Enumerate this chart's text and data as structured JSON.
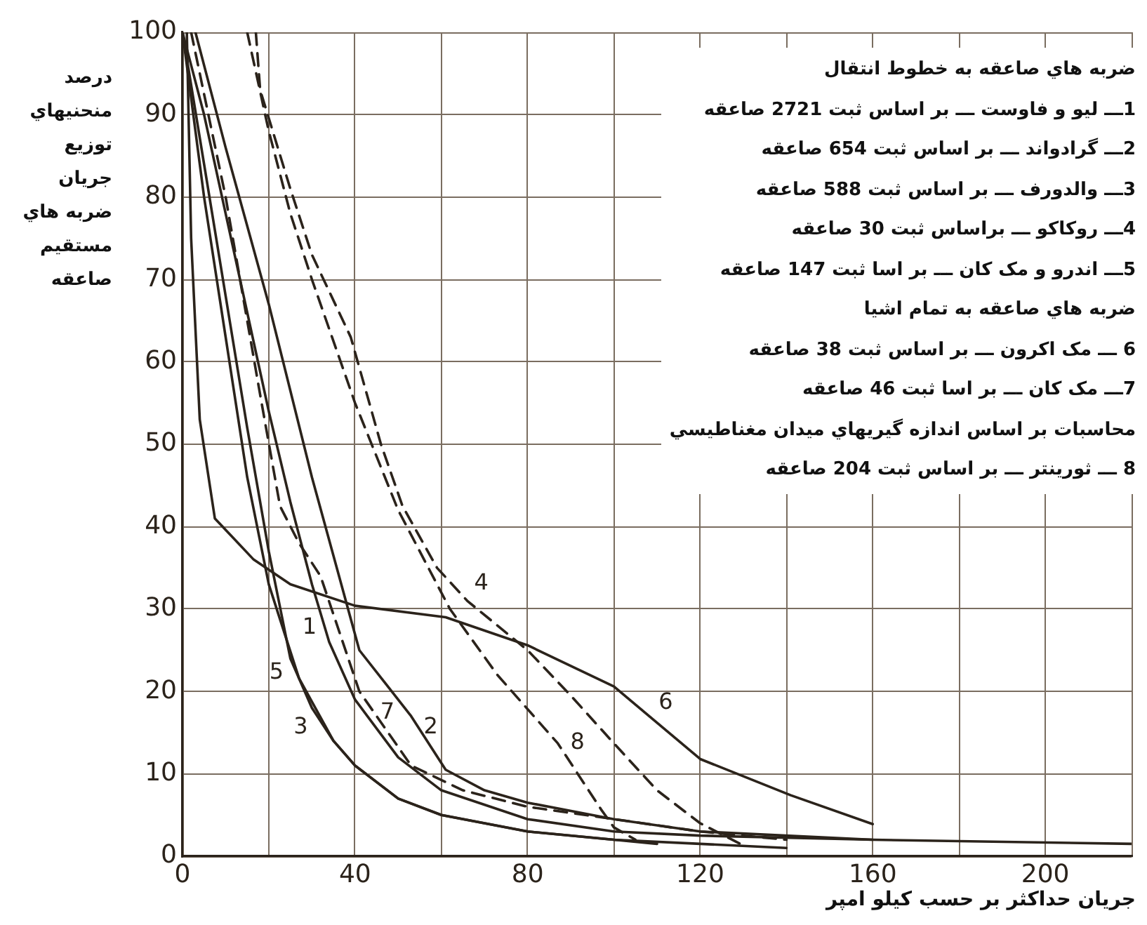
{
  "chart_data": {
    "type": "line",
    "xlabel": "جريان حداكثر بر حسب كيلو امپر",
    "ylabel": "درصد منحنيهاي توزيع جريان ضربه هاي مستقيم صاعقه",
    "xlim": [
      0,
      220
    ],
    "ylim": [
      0,
      100
    ],
    "xticks": [
      0,
      {
        "value": 20,
        "label": null
      },
      40,
      {
        "value": 60,
        "label": null
      },
      80,
      {
        "value": 100,
        "label": null
      },
      120,
      {
        "value": 140,
        "label": null
      },
      160,
      {
        "value": 180,
        "label": null
      },
      200,
      {
        "value": 220,
        "label": null
      }
    ],
    "yticks": [
      0,
      10,
      20,
      30,
      40,
      50,
      60,
      70,
      80,
      90,
      100
    ],
    "grid": true,
    "marker": "none",
    "series": [
      {
        "name": "1",
        "color": "#2b231b",
        "line_style": "solid",
        "x": [
          0,
          5,
          10,
          15,
          20,
          25,
          30,
          34,
          40,
          50,
          60,
          80,
          100,
          120,
          160,
          220
        ],
        "values": [
          100,
          90,
          78,
          66,
          54,
          43,
          33,
          26,
          19,
          12,
          8,
          4.5,
          3,
          2.5,
          2,
          1.5
        ]
      },
      {
        "name": "2",
        "color": "#2b231b",
        "line_style": "solid",
        "x": [
          3,
          10,
          20,
          30,
          41,
          47,
          53,
          61,
          70,
          80,
          100,
          120,
          160
        ],
        "values": [
          100,
          86,
          67,
          46,
          25,
          21,
          17,
          10.5,
          8,
          6.5,
          4.5,
          3,
          2
        ]
      },
      {
        "name": "3",
        "color": "#2b231b",
        "line_style": "solid",
        "x": [
          0,
          5,
          10,
          15,
          20,
          25,
          30,
          35,
          40,
          50,
          60,
          80,
          100,
          120,
          140
        ],
        "values": [
          100,
          84,
          68,
          52,
          37,
          24,
          18,
          14,
          11,
          7,
          5,
          3,
          2,
          1.5,
          1
        ]
      },
      {
        "name": "4",
        "color": "#2b231b",
        "line_style": "dashed",
        "x": [
          17,
          18,
          25,
          30,
          39,
          46,
          51,
          59,
          66,
          80,
          90,
          100,
          110,
          120,
          130
        ],
        "values": [
          100,
          93,
          81,
          73,
          63,
          50,
          42.5,
          35,
          31,
          25,
          19.5,
          13.7,
          8,
          4,
          1.3
        ]
      },
      {
        "name": "5",
        "color": "#2b231b",
        "line_style": "solid",
        "x": [
          0,
          5,
          10,
          15,
          20,
          27,
          35,
          40,
          50,
          60,
          80,
          100,
          110
        ],
        "values": [
          100,
          80,
          63,
          46,
          33,
          21.6,
          14,
          11,
          7,
          5,
          3,
          2,
          1.5
        ]
      },
      {
        "name": "6",
        "color": "#2b231b",
        "line_style": "solid",
        "x": [
          1,
          2,
          4,
          7.5,
          16.5,
          25,
          40,
          61,
          80,
          100,
          120,
          141,
          160
        ],
        "values": [
          100,
          75,
          53,
          41,
          36,
          33,
          30.4,
          29,
          25.6,
          20.6,
          11.8,
          7.4,
          3.9
        ]
      },
      {
        "name": "7",
        "color": "#2b231b",
        "line_style": "dashed",
        "x": [
          2,
          10,
          18,
          22.6,
          27,
          32,
          41,
          53,
          65,
          80,
          100,
          120,
          140
        ],
        "values": [
          100,
          80,
          56,
          42.5,
          38,
          34,
          20,
          11,
          8,
          6,
          4.5,
          3,
          2
        ]
      },
      {
        "name": "8",
        "color": "#2b231b",
        "line_style": "dashed",
        "x": [
          15,
          20,
          25,
          30,
          40,
          50,
          62,
          73,
          87,
          97,
          100,
          105
        ],
        "values": [
          100,
          88,
          78,
          70,
          55,
          42,
          30,
          22,
          13.7,
          5.7,
          3.5,
          2
        ]
      }
    ],
    "annotations": [
      "ضربه هاي صاعقه به خطوط انتقال",
      "1ـــ ليو و فاوست ـــ بر اساس ثبت 2721 صاعقه",
      "2ـــ گرادواند ـــ بر اساس ثبت 654 صاعقه",
      "3ـــ والدورف ـــ بر اساس ثبت 588 صاعقه",
      "4ـــ روكاكو ـــ براساس ثبت 30 صاعقه",
      "5ـــ اندرو و مک کان ـــ بر اسا ثبت 147 صاعقه",
      "ضربه هاي صاعقه به تمام اشيا",
      "6 ـــ مک اکرون ـــ بر اساس ثبت 38 صاعقه",
      "7ـــ مک کان ـــ بر اسا ثبت 46 صاعقه",
      "محاسبات بر اساس اندازه گيريهاي ميدان مغناطيسي",
      "8 ـــ ثورينتر ـــ بر اساس ثبت 204 صاعقه"
    ]
  }
}
